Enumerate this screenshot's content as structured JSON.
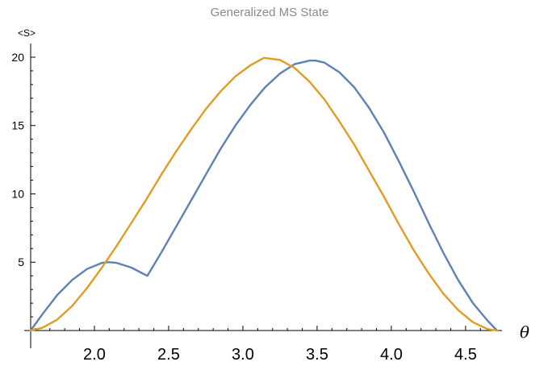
{
  "chart_data": {
    "type": "line",
    "title": "Generalized MS State",
    "xlabel": "θ",
    "ylabel": "<S>",
    "xlim": [
      1.5708,
      4.7124
    ],
    "ylim": [
      0,
      21
    ],
    "x_ticks": [
      2.0,
      2.5,
      3.0,
      3.5,
      4.0,
      4.5
    ],
    "x_tick_labels": [
      "2.0",
      "2.5",
      "3.0",
      "3.5",
      "4.0",
      "4.5"
    ],
    "y_ticks": [
      5,
      10,
      15,
      20
    ],
    "y_tick_labels": [
      "5",
      "10",
      "15",
      "20"
    ],
    "grid": false,
    "legend": "none",
    "series": [
      {
        "color": "#5e81b5",
        "x": [
          1.571,
          1.65,
          1.75,
          1.85,
          1.95,
          2.05,
          2.094,
          2.15,
          2.25,
          2.356,
          2.45,
          2.55,
          2.65,
          2.75,
          2.85,
          2.95,
          3.05,
          3.15,
          3.25,
          3.35,
          3.45,
          3.49,
          3.55,
          3.65,
          3.75,
          3.85,
          3.95,
          4.05,
          4.15,
          4.25,
          4.35,
          4.45,
          4.55,
          4.65,
          4.712
        ],
        "y": [
          0,
          1.2,
          2.6,
          3.7,
          4.5,
          4.95,
          5.0,
          4.95,
          4.6,
          4.0,
          5.7,
          7.6,
          9.5,
          11.4,
          13.3,
          15.0,
          16.5,
          17.8,
          18.8,
          19.5,
          19.75,
          19.75,
          19.6,
          18.9,
          17.8,
          16.3,
          14.5,
          12.4,
          10.2,
          7.9,
          5.7,
          3.7,
          2.0,
          0.7,
          0
        ]
      },
      {
        "color": "#e19c24",
        "x": [
          1.571,
          1.65,
          1.75,
          1.85,
          1.95,
          2.05,
          2.15,
          2.25,
          2.35,
          2.45,
          2.55,
          2.65,
          2.75,
          2.85,
          2.95,
          3.05,
          3.1416,
          3.25,
          3.35,
          3.45,
          3.55,
          3.65,
          3.75,
          3.85,
          3.95,
          4.05,
          4.15,
          4.25,
          4.35,
          4.45,
          4.55,
          4.65,
          4.712
        ],
        "y": [
          0,
          0.2,
          0.8,
          1.8,
          3.1,
          4.6,
          6.2,
          7.9,
          9.6,
          11.4,
          13.1,
          14.7,
          16.2,
          17.5,
          18.6,
          19.4,
          19.95,
          19.8,
          19.2,
          18.2,
          16.9,
          15.3,
          13.6,
          11.7,
          9.8,
          7.8,
          5.9,
          4.2,
          2.7,
          1.5,
          0.6,
          0.1,
          0
        ]
      }
    ]
  }
}
